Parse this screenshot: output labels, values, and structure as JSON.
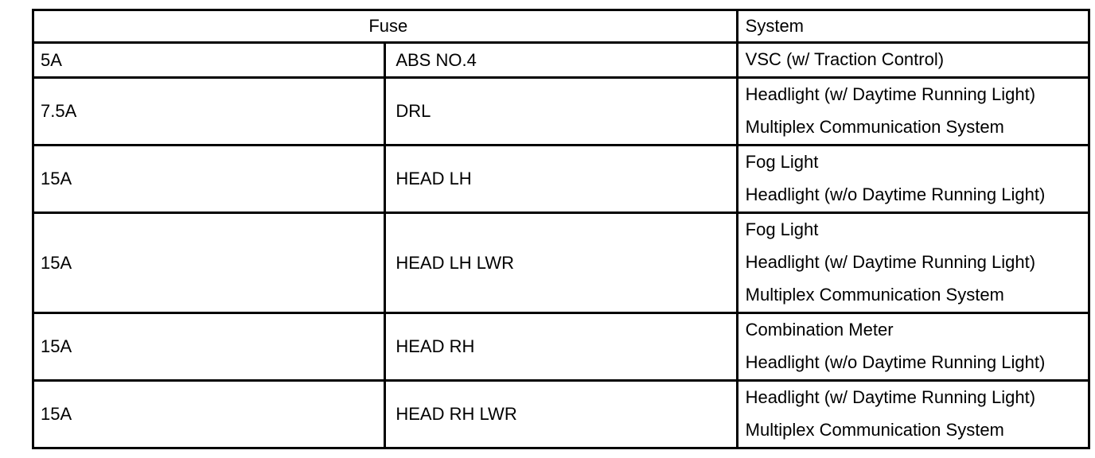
{
  "header": {
    "fuse": "Fuse",
    "system": "System"
  },
  "rows": [
    {
      "amp": "5A",
      "name": "ABS NO.4",
      "systems": [
        "VSC (w/ Traction Control)"
      ]
    },
    {
      "amp": "7.5A",
      "name": "DRL",
      "systems": [
        "Headlight (w/ Daytime Running Light)",
        "Multiplex Communication System"
      ]
    },
    {
      "amp": "15A",
      "name": "HEAD LH",
      "systems": [
        "Fog Light",
        "Headlight (w/o Daytime Running Light)"
      ]
    },
    {
      "amp": "15A",
      "name": "HEAD LH LWR",
      "systems": [
        "Fog Light",
        "Headlight (w/ Daytime Running Light)",
        "Multiplex Communication System"
      ]
    },
    {
      "amp": "15A",
      "name": "HEAD RH",
      "systems": [
        "Combination Meter",
        "Headlight (w/o Daytime Running Light)"
      ]
    },
    {
      "amp": "15A",
      "name": "HEAD RH LWR",
      "systems": [
        "Headlight (w/ Daytime Running Light)",
        "Multiplex Communication System"
      ]
    }
  ]
}
